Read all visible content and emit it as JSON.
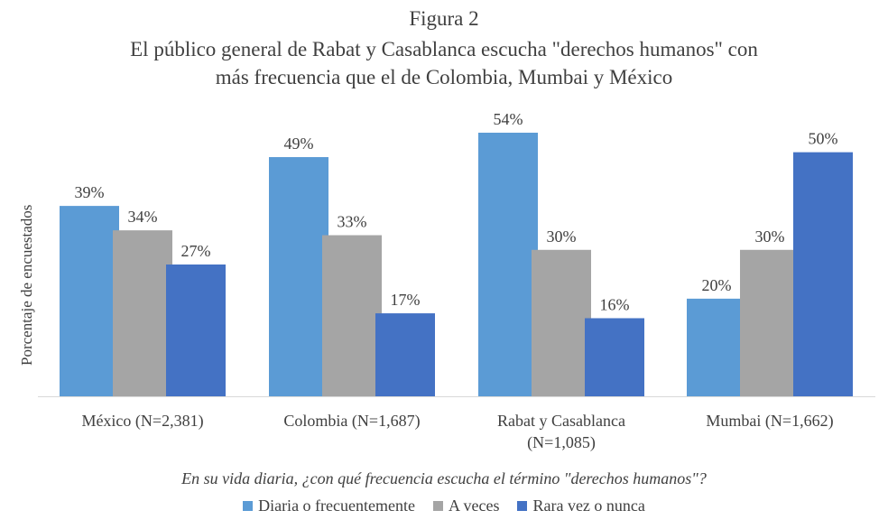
{
  "chart_data": {
    "type": "bar",
    "title": "Figura 2",
    "subtitle_line1": "El público general de Rabat y Casablanca escucha \"derechos humanos\" con",
    "subtitle_line2": "más frecuencia que el de Colombia, Mumbai y México",
    "ylabel": "Porcentaje de encuestados",
    "xlabel": "En su vida diaria, ¿con qué frecuencia escucha el término \"derechos humanos\"?",
    "categories": [
      [
        "México (N=2,381)"
      ],
      [
        "Colombia (N=1,687)"
      ],
      [
        "Rabat y Casablanca",
        "(N=1,085)"
      ],
      [
        "Mumbai (N=1,662)"
      ]
    ],
    "series": [
      {
        "name": "Diaria o frecuentemente",
        "color": "#5b9bd5",
        "values": [
          39,
          49,
          54,
          20
        ],
        "labels": [
          "39%",
          "49%",
          "54%",
          "20%"
        ]
      },
      {
        "name": "A veces",
        "color": "#a5a5a5",
        "values": [
          34,
          33,
          30,
          30
        ],
        "labels": [
          "34%",
          "33%",
          "30%",
          "30%"
        ]
      },
      {
        "name": "Rara vez o nunca",
        "color": "#4472c4",
        "values": [
          27,
          17,
          16,
          50
        ],
        "labels": [
          "27%",
          "17%",
          "16%",
          "50%"
        ]
      }
    ],
    "ylim": [
      0,
      54
    ],
    "legend_position": "bottom"
  }
}
